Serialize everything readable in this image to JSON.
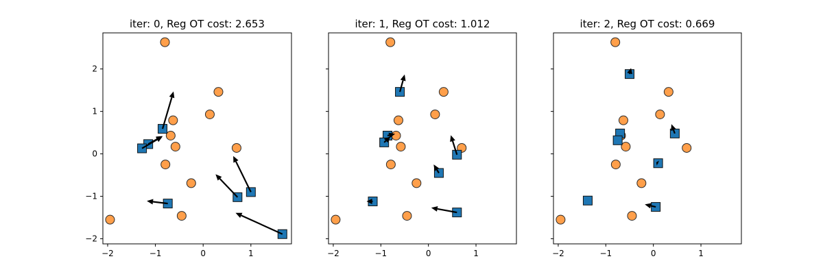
{
  "chart_data": [
    {
      "type": "scatter",
      "title": "iter: 0, Reg OT cost: 2.653",
      "xlim": [
        -2.1,
        1.85
      ],
      "ylim": [
        -2.12,
        2.85
      ],
      "xticks": [
        -2,
        -1,
        0,
        1
      ],
      "yticks": [
        -2,
        -1,
        0,
        1,
        2
      ],
      "show_yticklabels": true,
      "target_points": [
        [
          -0.8,
          2.63
        ],
        [
          0.32,
          1.46
        ],
        [
          0.14,
          0.93
        ],
        [
          -0.63,
          0.79
        ],
        [
          -0.68,
          0.43
        ],
        [
          -0.58,
          0.17
        ],
        [
          0.7,
          0.14
        ],
        [
          -0.79,
          -0.25
        ],
        [
          -0.25,
          -0.69
        ],
        [
          -0.45,
          -1.46
        ],
        [
          -1.95,
          -1.55
        ]
      ],
      "source_points": [
        [
          -0.85,
          0.59
        ],
        [
          -1.15,
          0.23
        ],
        [
          -1.28,
          0.13
        ],
        [
          0.72,
          -1.02
        ],
        [
          1.0,
          -0.9
        ],
        [
          -0.74,
          -1.17
        ],
        [
          1.66,
          -1.89
        ]
      ],
      "arrows": [
        [
          -0.85,
          0.59,
          -0.62,
          1.47
        ],
        [
          -1.15,
          0.23,
          -0.85,
          0.42
        ],
        [
          -1.28,
          0.13,
          -0.85,
          0.41
        ],
        [
          0.72,
          -1.02,
          0.26,
          -0.48
        ],
        [
          1.0,
          -0.9,
          0.63,
          -0.05
        ],
        [
          -0.74,
          -1.17,
          -1.18,
          -1.11
        ],
        [
          1.66,
          -1.89,
          0.68,
          -1.39
        ]
      ]
    },
    {
      "type": "scatter",
      "title": "iter: 1, Reg OT cost: 1.012",
      "xlim": [
        -2.1,
        1.85
      ],
      "ylim": [
        -2.12,
        2.85
      ],
      "xticks": [
        -2,
        -1,
        0,
        1
      ],
      "yticks": [
        -2,
        -1,
        0,
        1,
        2
      ],
      "show_yticklabels": false,
      "target_points": [
        [
          -0.8,
          2.63
        ],
        [
          0.32,
          1.46
        ],
        [
          0.14,
          0.93
        ],
        [
          -0.63,
          0.79
        ],
        [
          -0.68,
          0.43
        ],
        [
          -0.58,
          0.17
        ],
        [
          0.7,
          0.14
        ],
        [
          -0.79,
          -0.25
        ],
        [
          -0.25,
          -0.69
        ],
        [
          -0.45,
          -1.46
        ],
        [
          -1.95,
          -1.55
        ]
      ],
      "source_points": [
        [
          -0.6,
          1.46
        ],
        [
          -0.86,
          0.43
        ],
        [
          -0.93,
          0.27
        ],
        [
          0.6,
          -0.02
        ],
        [
          0.22,
          -0.45
        ],
        [
          -1.17,
          -1.12
        ],
        [
          0.6,
          -1.38
        ]
      ],
      "arrows": [
        [
          -0.6,
          1.46,
          -0.5,
          1.87
        ],
        [
          -0.86,
          0.43,
          -0.7,
          0.47
        ],
        [
          -0.93,
          0.27,
          -0.8,
          0.41
        ],
        [
          0.6,
          -0.02,
          0.47,
          0.44
        ],
        [
          0.22,
          -0.45,
          0.11,
          -0.25
        ],
        [
          -1.17,
          -1.12,
          -1.3,
          -1.12
        ],
        [
          0.6,
          -1.38,
          0.06,
          -1.27
        ]
      ]
    },
    {
      "type": "scatter",
      "title": "iter: 2, Reg OT cost: 0.669",
      "xlim": [
        -2.1,
        1.85
      ],
      "ylim": [
        -2.12,
        2.85
      ],
      "xticks": [
        -2,
        -1,
        0,
        1
      ],
      "yticks": [
        -2,
        -1,
        0,
        1,
        2
      ],
      "show_yticklabels": false,
      "target_points": [
        [
          -0.8,
          2.63
        ],
        [
          0.32,
          1.46
        ],
        [
          0.14,
          0.93
        ],
        [
          -0.63,
          0.79
        ],
        [
          -0.68,
          0.43
        ],
        [
          -0.58,
          0.17
        ],
        [
          0.7,
          0.14
        ],
        [
          -0.79,
          -0.25
        ],
        [
          -0.25,
          -0.69
        ],
        [
          -0.45,
          -1.46
        ],
        [
          -1.95,
          -1.55
        ]
      ],
      "source_points": [
        [
          -0.5,
          1.88
        ],
        [
          -0.7,
          0.48
        ],
        [
          -0.75,
          0.32
        ],
        [
          0.45,
          0.48
        ],
        [
          0.1,
          -0.22
        ],
        [
          -1.38,
          -1.1
        ],
        [
          0.05,
          -1.25
        ]
      ],
      "arrows": [
        [
          -0.5,
          1.88,
          -0.47,
          2.02
        ],
        [
          0.45,
          0.48,
          0.38,
          0.7
        ],
        [
          0.1,
          -0.22,
          0.06,
          -0.2
        ],
        [
          0.05,
          -1.25,
          -0.18,
          -1.19
        ]
      ]
    }
  ]
}
